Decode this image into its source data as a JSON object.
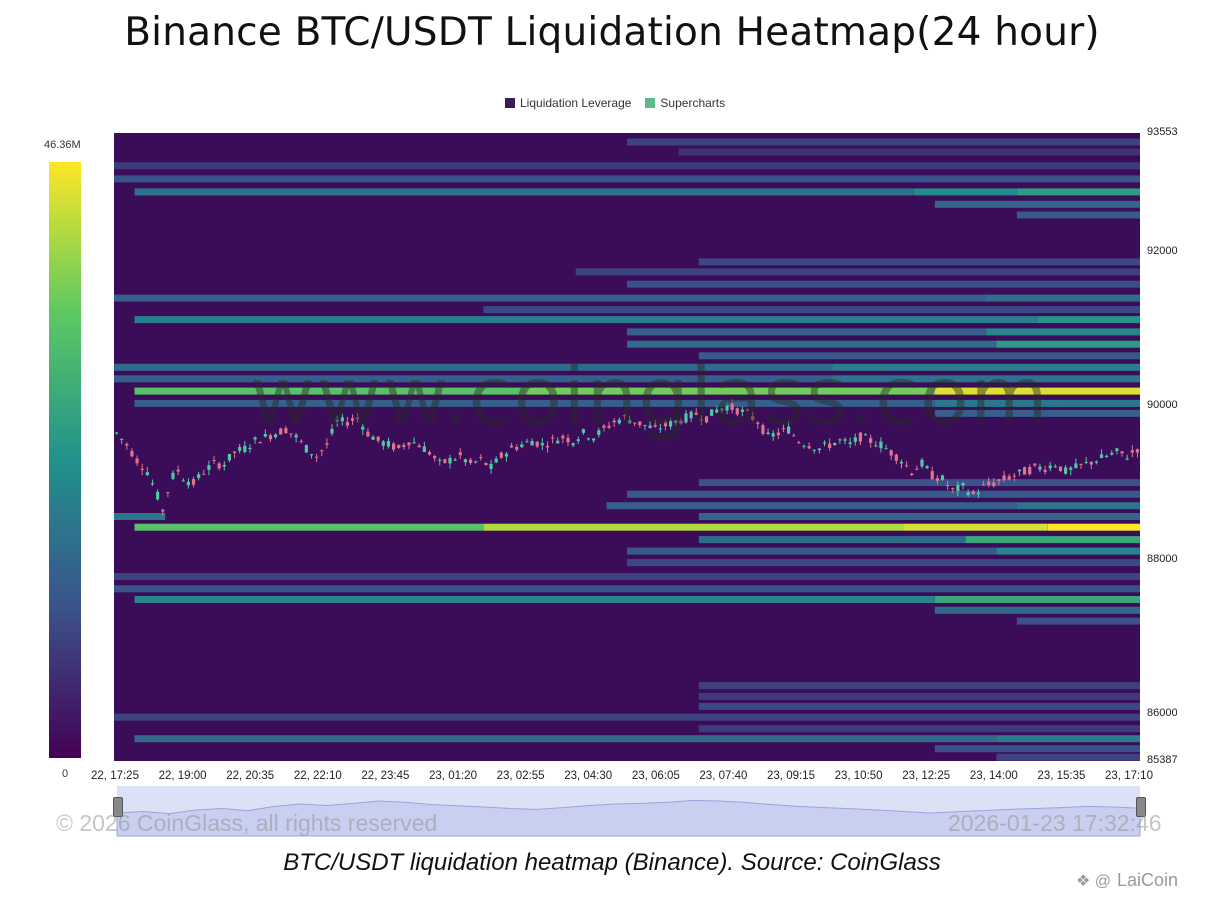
{
  "title": "Binance BTC/USDT Liquidation Heatmap(24 hour)",
  "legend": [
    {
      "label": "Liquidation Leverage",
      "color": "#3d1a5e"
    },
    {
      "label": "Supercharts",
      "color": "#5fb88a"
    }
  ],
  "color_scale": {
    "max_label": "46.36M",
    "min_label": "0",
    "colors": [
      "#440154",
      "#3b528b",
      "#21918c",
      "#5ec962",
      "#fde725"
    ]
  },
  "watermark": "www.coinglass.com",
  "footer": {
    "copyright": "© 2026 CoinGlass, all rights reserved",
    "timestamp": "2026-01-23 17:32:46"
  },
  "caption": "BTC/USDT liquidation heatmap (Binance). Source: CoinGlass",
  "brand": "LaiCoin",
  "brand_icon": "laicoin-logo-icon",
  "chart_data": {
    "type": "heatmap",
    "title": "Binance BTC/USDT Liquidation Heatmap(24 hour)",
    "x_ticks": [
      "22, 17:25",
      "22, 19:00",
      "22, 20:35",
      "22, 22:10",
      "22, 23:45",
      "23, 01:20",
      "23, 02:55",
      "23, 04:30",
      "23, 06:05",
      "23, 07:40",
      "23, 09:15",
      "23, 10:50",
      "23, 12:25",
      "23, 14:00",
      "23, 15:35",
      "23, 17:10"
    ],
    "y_ticks": [
      93553,
      92000,
      90000,
      88000,
      86000,
      85387
    ],
    "ylim": [
      85387,
      93553
    ],
    "color_range": [
      0,
      46360000
    ],
    "bands": [
      {
        "price": 93430,
        "start": 0.5,
        "end": 1.0,
        "levels": [
          [
            0.5,
            0.2
          ]
        ]
      },
      {
        "price": 93300,
        "start": 0.55,
        "end": 1.0,
        "levels": [
          [
            0.55,
            0.15
          ]
        ]
      },
      {
        "price": 93120,
        "start": 0.0,
        "end": 1.0,
        "levels": [
          [
            0.0,
            0.18
          ]
        ]
      },
      {
        "price": 92950,
        "start": 0.0,
        "end": 1.0,
        "levels": [
          [
            0.0,
            0.25
          ]
        ]
      },
      {
        "price": 92780,
        "start": 0.02,
        "end": 1.0,
        "levels": [
          [
            0.02,
            0.38
          ],
          [
            0.78,
            0.48
          ],
          [
            0.88,
            0.55
          ]
        ]
      },
      {
        "price": 92620,
        "start": 0.8,
        "end": 1.0,
        "levels": [
          [
            0.8,
            0.32
          ]
        ]
      },
      {
        "price": 92480,
        "start": 0.88,
        "end": 1.0,
        "levels": [
          [
            0.88,
            0.28
          ]
        ]
      },
      {
        "price": 91870,
        "start": 0.57,
        "end": 1.0,
        "levels": [
          [
            0.57,
            0.22
          ]
        ]
      },
      {
        "price": 91740,
        "start": 0.45,
        "end": 1.0,
        "levels": [
          [
            0.45,
            0.2
          ]
        ]
      },
      {
        "price": 91580,
        "start": 0.5,
        "end": 1.0,
        "levels": [
          [
            0.5,
            0.24
          ]
        ]
      },
      {
        "price": 91400,
        "start": 0.0,
        "end": 1.0,
        "levels": [
          [
            0.0,
            0.3
          ],
          [
            0.85,
            0.36
          ]
        ]
      },
      {
        "price": 91250,
        "start": 0.36,
        "end": 1.0,
        "levels": [
          [
            0.36,
            0.22
          ]
        ]
      },
      {
        "price": 91120,
        "start": 0.02,
        "end": 1.0,
        "levels": [
          [
            0.02,
            0.42
          ],
          [
            0.9,
            0.52
          ]
        ]
      },
      {
        "price": 90960,
        "start": 0.5,
        "end": 1.0,
        "levels": [
          [
            0.5,
            0.3
          ],
          [
            0.85,
            0.46
          ]
        ]
      },
      {
        "price": 90800,
        "start": 0.5,
        "end": 1.0,
        "levels": [
          [
            0.5,
            0.35
          ],
          [
            0.86,
            0.55
          ]
        ]
      },
      {
        "price": 90650,
        "start": 0.57,
        "end": 1.0,
        "levels": [
          [
            0.57,
            0.28
          ]
        ]
      },
      {
        "price": 90500,
        "start": 0.0,
        "end": 1.0,
        "levels": [
          [
            0.0,
            0.35
          ],
          [
            0.7,
            0.42
          ]
        ]
      },
      {
        "price": 90350,
        "start": 0.0,
        "end": 1.0,
        "levels": [
          [
            0.0,
            0.3
          ],
          [
            0.7,
            0.38
          ]
        ]
      },
      {
        "price": 90190,
        "start": 0.02,
        "end": 1.0,
        "levels": [
          [
            0.02,
            0.72
          ],
          [
            0.4,
            0.78
          ],
          [
            0.8,
            0.95
          ]
        ]
      },
      {
        "price": 90030,
        "start": 0.02,
        "end": 1.0,
        "levels": [
          [
            0.02,
            0.3
          ],
          [
            0.8,
            0.4
          ]
        ]
      },
      {
        "price": 89900,
        "start": 0.8,
        "end": 1.0,
        "levels": [
          [
            0.8,
            0.3
          ]
        ]
      },
      {
        "price": 89000,
        "start": 0.57,
        "end": 1.0,
        "levels": [
          [
            0.57,
            0.25
          ]
        ]
      },
      {
        "price": 88850,
        "start": 0.5,
        "end": 1.0,
        "levels": [
          [
            0.5,
            0.28
          ]
        ]
      },
      {
        "price": 88700,
        "start": 0.48,
        "end": 1.0,
        "levels": [
          [
            0.48,
            0.3
          ],
          [
            0.88,
            0.38
          ]
        ]
      },
      {
        "price": 88560,
        "start": 0.0,
        "end": 0.05,
        "levels": [
          [
            0.0,
            0.4
          ]
        ]
      },
      {
        "price": 88560,
        "start": 0.57,
        "end": 1.0,
        "levels": [
          [
            0.57,
            0.32
          ]
        ]
      },
      {
        "price": 88420,
        "start": 0.02,
        "end": 1.0,
        "levels": [
          [
            0.02,
            0.72
          ],
          [
            0.36,
            0.88
          ],
          [
            0.77,
            0.94
          ],
          [
            0.91,
            1.0
          ]
        ]
      },
      {
        "price": 88260,
        "start": 0.57,
        "end": 1.0,
        "levels": [
          [
            0.57,
            0.35
          ],
          [
            0.83,
            0.6
          ]
        ]
      },
      {
        "price": 88110,
        "start": 0.5,
        "end": 1.0,
        "levels": [
          [
            0.5,
            0.28
          ],
          [
            0.86,
            0.45
          ]
        ]
      },
      {
        "price": 87960,
        "start": 0.5,
        "end": 1.0,
        "levels": [
          [
            0.5,
            0.22
          ]
        ]
      },
      {
        "price": 87780,
        "start": 0.0,
        "end": 1.0,
        "levels": [
          [
            0.0,
            0.2
          ]
        ]
      },
      {
        "price": 87620,
        "start": 0.0,
        "end": 1.0,
        "levels": [
          [
            0.0,
            0.25
          ]
        ]
      },
      {
        "price": 87480,
        "start": 0.02,
        "end": 1.0,
        "levels": [
          [
            0.02,
            0.45
          ],
          [
            0.8,
            0.6
          ]
        ]
      },
      {
        "price": 87340,
        "start": 0.8,
        "end": 1.0,
        "levels": [
          [
            0.8,
            0.35
          ]
        ]
      },
      {
        "price": 87200,
        "start": 0.88,
        "end": 1.0,
        "levels": [
          [
            0.88,
            0.25
          ]
        ]
      },
      {
        "price": 86360,
        "start": 0.57,
        "end": 1.0,
        "levels": [
          [
            0.57,
            0.2
          ]
        ]
      },
      {
        "price": 86220,
        "start": 0.57,
        "end": 1.0,
        "levels": [
          [
            0.57,
            0.18
          ]
        ]
      },
      {
        "price": 86090,
        "start": 0.57,
        "end": 1.0,
        "levels": [
          [
            0.57,
            0.22
          ]
        ]
      },
      {
        "price": 85950,
        "start": 0.0,
        "end": 1.0,
        "levels": [
          [
            0.0,
            0.2
          ]
        ]
      },
      {
        "price": 85800,
        "start": 0.57,
        "end": 1.0,
        "levels": [
          [
            0.57,
            0.18
          ]
        ]
      },
      {
        "price": 85670,
        "start": 0.02,
        "end": 1.0,
        "levels": [
          [
            0.02,
            0.35
          ],
          [
            0.86,
            0.42
          ]
        ]
      },
      {
        "price": 85540,
        "start": 0.8,
        "end": 1.0,
        "levels": [
          [
            0.8,
            0.25
          ]
        ]
      },
      {
        "price": 85430,
        "start": 0.86,
        "end": 1.0,
        "levels": [
          [
            0.86,
            0.2
          ]
        ]
      }
    ],
    "price_path": [
      [
        0.0,
        89650
      ],
      [
        0.01,
        89500
      ],
      [
        0.02,
        89300
      ],
      [
        0.03,
        89150
      ],
      [
        0.038,
        88900
      ],
      [
        0.045,
        88650
      ],
      [
        0.05,
        88900
      ],
      [
        0.058,
        89200
      ],
      [
        0.066,
        89050
      ],
      [
        0.075,
        89000
      ],
      [
        0.085,
        89150
      ],
      [
        0.095,
        89250
      ],
      [
        0.105,
        89250
      ],
      [
        0.115,
        89400
      ],
      [
        0.125,
        89450
      ],
      [
        0.135,
        89550
      ],
      [
        0.145,
        89600
      ],
      [
        0.155,
        89650
      ],
      [
        0.165,
        89700
      ],
      [
        0.175,
        89600
      ],
      [
        0.185,
        89450
      ],
      [
        0.195,
        89350
      ],
      [
        0.205,
        89500
      ],
      [
        0.215,
        89800
      ],
      [
        0.225,
        89800
      ],
      [
        0.235,
        89850
      ],
      [
        0.245,
        89650
      ],
      [
        0.255,
        89550
      ],
      [
        0.265,
        89500
      ],
      [
        0.275,
        89450
      ],
      [
        0.285,
        89550
      ],
      [
        0.295,
        89500
      ],
      [
        0.305,
        89400
      ],
      [
        0.315,
        89250
      ],
      [
        0.325,
        89300
      ],
      [
        0.335,
        89350
      ],
      [
        0.345,
        89250
      ],
      [
        0.355,
        89300
      ],
      [
        0.365,
        89200
      ],
      [
        0.375,
        89350
      ],
      [
        0.385,
        89450
      ],
      [
        0.395,
        89500
      ],
      [
        0.405,
        89550
      ],
      [
        0.415,
        89500
      ],
      [
        0.425,
        89550
      ],
      [
        0.435,
        89600
      ],
      [
        0.445,
        89550
      ],
      [
        0.455,
        89650
      ],
      [
        0.465,
        89600
      ],
      [
        0.475,
        89700
      ],
      [
        0.485,
        89800
      ],
      [
        0.495,
        89850
      ],
      [
        0.505,
        89800
      ],
      [
        0.515,
        89750
      ],
      [
        0.525,
        89700
      ],
      [
        0.535,
        89750
      ],
      [
        0.545,
        89800
      ],
      [
        0.555,
        89850
      ],
      [
        0.565,
        89900
      ],
      [
        0.575,
        89850
      ],
      [
        0.585,
        89950
      ],
      [
        0.595,
        90000
      ],
      [
        0.605,
        89950
      ],
      [
        0.615,
        89900
      ],
      [
        0.625,
        89800
      ],
      [
        0.635,
        89600
      ],
      [
        0.645,
        89650
      ],
      [
        0.655,
        89700
      ],
      [
        0.665,
        89550
      ],
      [
        0.675,
        89500
      ],
      [
        0.685,
        89450
      ],
      [
        0.695,
        89500
      ],
      [
        0.705,
        89550
      ],
      [
        0.715,
        89500
      ],
      [
        0.725,
        89600
      ],
      [
        0.735,
        89550
      ],
      [
        0.745,
        89500
      ],
      [
        0.755,
        89400
      ],
      [
        0.765,
        89300
      ],
      [
        0.775,
        89150
      ],
      [
        0.785,
        89250
      ],
      [
        0.795,
        89100
      ],
      [
        0.805,
        89050
      ],
      [
        0.815,
        88900
      ],
      [
        0.825,
        88950
      ],
      [
        0.835,
        88850
      ],
      [
        0.845,
        88950
      ],
      [
        0.855,
        89000
      ],
      [
        0.865,
        89050
      ],
      [
        0.875,
        89100
      ],
      [
        0.885,
        89150
      ],
      [
        0.895,
        89200
      ],
      [
        0.905,
        89200
      ],
      [
        0.915,
        89250
      ],
      [
        0.925,
        89150
      ],
      [
        0.935,
        89200
      ],
      [
        0.945,
        89250
      ],
      [
        0.955,
        89300
      ],
      [
        0.965,
        89350
      ],
      [
        0.975,
        89400
      ],
      [
        0.985,
        89350
      ],
      [
        0.995,
        89450
      ]
    ],
    "navigator_profile": [
      0.3,
      0.35,
      0.28,
      0.4,
      0.45,
      0.38,
      0.52,
      0.6,
      0.55,
      0.62,
      0.7,
      0.66,
      0.58,
      0.54,
      0.5,
      0.45,
      0.42,
      0.48,
      0.55,
      0.6,
      0.62,
      0.66,
      0.72,
      0.7,
      0.65,
      0.58,
      0.52,
      0.48,
      0.44,
      0.4,
      0.35,
      0.3,
      0.34,
      0.38,
      0.42,
      0.45,
      0.48,
      0.52,
      0.5,
      0.46
    ]
  }
}
